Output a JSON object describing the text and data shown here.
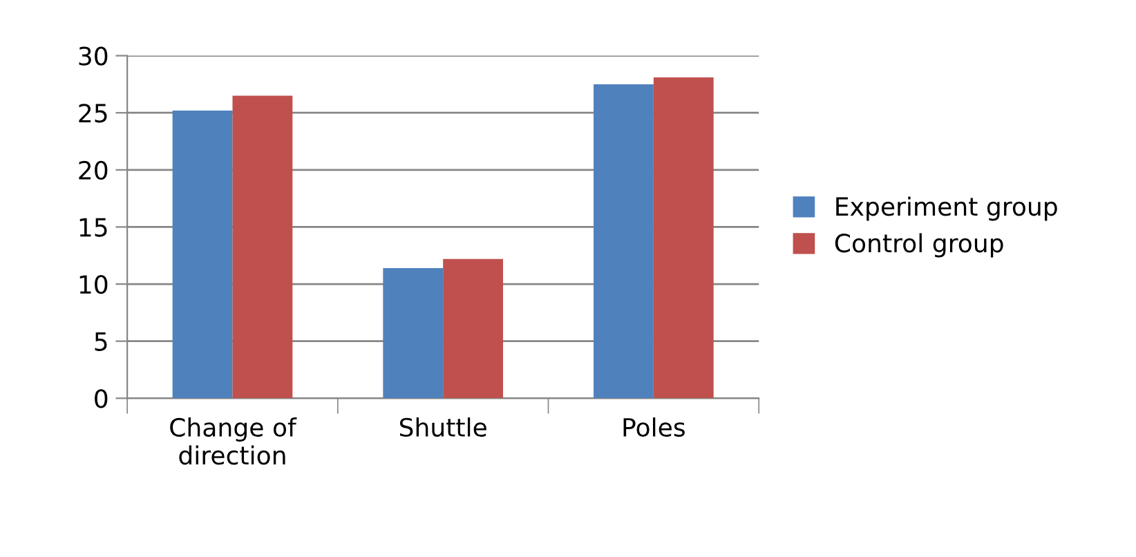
{
  "chart_data": {
    "type": "bar",
    "categories": [
      "Change of\ndirection",
      "Shuttle",
      "Poles"
    ],
    "series": [
      {
        "name": "Experiment group",
        "color": "#4f81bd",
        "values": [
          25.2,
          11.4,
          27.5
        ]
      },
      {
        "name": "Control group",
        "color": "#c0504d",
        "values": [
          26.5,
          12.2,
          28.1
        ]
      }
    ],
    "ylim": [
      0,
      30
    ],
    "yticks": [
      0,
      5,
      10,
      15,
      20,
      25,
      30
    ],
    "grid": "y",
    "legend": "right"
  }
}
